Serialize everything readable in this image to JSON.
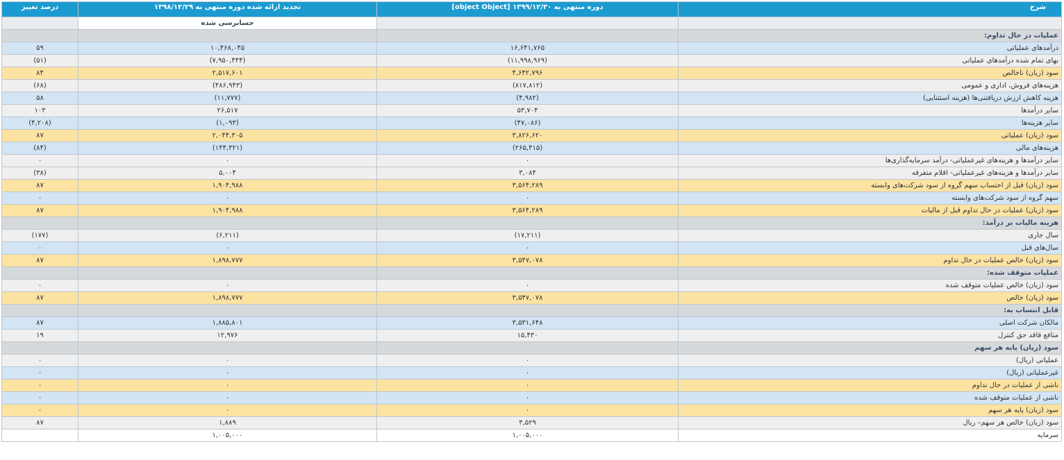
{
  "header": {
    "col_desc": "شرح",
    "col_current": "دوره منتهی به ۱۳۹۹/۱۲/۳۰ [object Object]",
    "col_prior": "تجدید ارائه شده دوره منتهی به ۱۳۹۸/۱۲/۲۹",
    "col_change": "درصد تغییر",
    "prior_sub": "حسابرسی شده"
  },
  "rows": [
    {
      "type": "section",
      "label": "عملیات در حال تداوم:"
    },
    {
      "type": "row",
      "color": "blue",
      "label": "درآمدهای عملیاتی",
      "cur": "۱۶,۶۴۱,۷۶۵",
      "prev": "۱۰,۴۶۸,۰۴۵",
      "pct": "۵۹"
    },
    {
      "type": "row",
      "color": "gray",
      "label": "بهای تمام شده درآمدهای عملیاتی",
      "cur": "(۱۱,۹۹۸,۹۶۹)",
      "prev": "(۷,۹۵۰,۴۴۴)",
      "pct": "(۵۱)",
      "neg": true
    },
    {
      "type": "row",
      "color": "yellow",
      "label": "سود (زیان) ناخالص",
      "cur": "۴,۶۴۲,۷۹۶",
      "prev": "۲,۵۱۷,۶۰۱",
      "pct": "۸۴"
    },
    {
      "type": "row",
      "color": "gray",
      "label": "هزینه‌های فروش، اداری و عمومی",
      "cur": "(۸۱۷,۸۱۲)",
      "prev": "(۴۸۶,۹۴۳)",
      "pct": "(۶۸)",
      "neg": true
    },
    {
      "type": "row",
      "color": "blue",
      "label": "هزینه کاهش ارزش دریافتنی‌ها (هزینه استثنایی)",
      "cur": "(۴,۹۸۲)",
      "prev": "(۱۱,۷۷۷)",
      "pct": "۵۸",
      "negcur": true
    },
    {
      "type": "row",
      "color": "gray",
      "label": "سایر درآمدها",
      "cur": "۵۳,۷۰۴",
      "prev": "۲۶,۵۱۷",
      "pct": "۱۰۳"
    },
    {
      "type": "row",
      "color": "blue",
      "label": "سایر هزینه‌ها",
      "cur": "(۴۷,۰۸۶)",
      "prev": "(۱,۰۹۳)",
      "pct": "(۴,۲۰۸)",
      "neg": true
    },
    {
      "type": "row",
      "color": "yellow",
      "label": "سود (زیان) عملیاتی",
      "cur": "۳,۸۲۶,۶۲۰",
      "prev": "۲,۰۴۴,۳۰۵",
      "pct": "۸۷"
    },
    {
      "type": "row",
      "color": "blue",
      "label": "هزینه‌های مالی",
      "cur": "(۲۶۵,۴۱۵)",
      "prev": "(۱۴۴,۳۲۱)",
      "pct": "(۸۴)",
      "neg": true
    },
    {
      "type": "row",
      "color": "gray",
      "label": "سایر درآمدها و هزینه‌های غیرعملیاتی- درآمد سرمایه‌گذاری‌ها",
      "cur": "۰",
      "prev": "۰",
      "pct": "۰"
    },
    {
      "type": "row",
      "color": "gray",
      "label": "سایر درآمدها و هزینه‌های غیرعملیاتی- اقلام متفرقه",
      "cur": "۳,۰۸۴",
      "prev": "۵,۰۰۴",
      "pct": "(۳۸)",
      "negpct": true
    },
    {
      "type": "row",
      "color": "yellow",
      "label": "سود (زیان) قبل از احتساب سهم گروه از سود شرکت‌های وابسته",
      "cur": "۳,۵۶۴,۲۸۹",
      "prev": "۱,۹۰۴,۹۸۸",
      "pct": "۸۷"
    },
    {
      "type": "row",
      "color": "blue",
      "label": "سهم گروه از سود شرکت‌های وابسته",
      "cur": "۰",
      "prev": "۰",
      "pct": "۰"
    },
    {
      "type": "row",
      "color": "yellow",
      "label": "سود (زیان) عملیات در حال تداوم قبل از مالیات",
      "cur": "۳,۵۶۴,۲۸۹",
      "prev": "۱,۹۰۴,۹۸۸",
      "pct": "۸۷"
    },
    {
      "type": "section",
      "label": "هزینه مالیات بر درآمد:"
    },
    {
      "type": "row",
      "color": "gray",
      "label": "سال جاری",
      "cur": "(۱۷,۲۱۱)",
      "prev": "(۶,۲۱۱)",
      "pct": "(۱۷۷)",
      "neg": true
    },
    {
      "type": "row",
      "color": "blue",
      "label": "سال‌های قبل",
      "cur": "۰",
      "prev": "۰",
      "pct": "۰"
    },
    {
      "type": "row",
      "color": "yellow",
      "label": "سود (زیان) خالص عملیات در حال تداوم",
      "cur": "۳,۵۴۷,۰۷۸",
      "prev": "۱,۸۹۸,۷۷۷",
      "pct": "۸۷"
    },
    {
      "type": "section",
      "label": "عملیات متوقف شده:"
    },
    {
      "type": "row",
      "color": "gray",
      "label": "سود (زیان) خالص عملیات متوقف شده",
      "cur": "۰",
      "prev": "۰",
      "pct": "۰"
    },
    {
      "type": "row",
      "color": "yellow",
      "label": "سود (زیان) خالص",
      "cur": "۳,۵۴۷,۰۷۸",
      "prev": "۱,۸۹۸,۷۷۷",
      "pct": "۸۷"
    },
    {
      "type": "section",
      "label": "قابل انتساب به:"
    },
    {
      "type": "row",
      "color": "blue",
      "label": "مالکان شرکت اصلی",
      "cur": "۳,۵۳۱,۶۴۸",
      "prev": "۱,۸۸۵,۸۰۱",
      "pct": "۸۷"
    },
    {
      "type": "row",
      "color": "gray",
      "label": "منافع فاقد حق کنترل",
      "cur": "۱۵,۴۳۰",
      "prev": "۱۲,۹۷۶",
      "pct": "۱۹"
    },
    {
      "type": "section",
      "label": "سود (زیان) پایه هر سهم"
    },
    {
      "type": "row",
      "color": "gray",
      "label": "عملیاتی (ریال)",
      "cur": "۰",
      "prev": "۰",
      "pct": "۰"
    },
    {
      "type": "row",
      "color": "blue",
      "label": "غیرعملیاتی (ریال)",
      "cur": "۰",
      "prev": "۰",
      "pct": "۰"
    },
    {
      "type": "row",
      "color": "yellow",
      "label": "ناشی از عملیات در حال تداوم",
      "cur": "۰",
      "prev": "۰",
      "pct": "۰"
    },
    {
      "type": "row",
      "color": "blue",
      "label": "ناشی از عملیات متوقف شده",
      "cur": "۰",
      "prev": "۰",
      "pct": "۰"
    },
    {
      "type": "row",
      "color": "yellow",
      "label": "سود (زیان) پایه هر سهم",
      "cur": "۰",
      "prev": "۰",
      "pct": "۰"
    },
    {
      "type": "row",
      "color": "gray",
      "label": "سود (زیان) خالص هر سهم– ریال",
      "cur": "۳,۵۲۹",
      "prev": "۱,۸۸۹",
      "pct": "۸۷"
    },
    {
      "type": "row",
      "color": "white",
      "label": "سرمایه",
      "cur": "۱,۰۰۵,۰۰۰",
      "prev": "۱,۰۰۵,۰۰۰",
      "pct": ""
    }
  ]
}
